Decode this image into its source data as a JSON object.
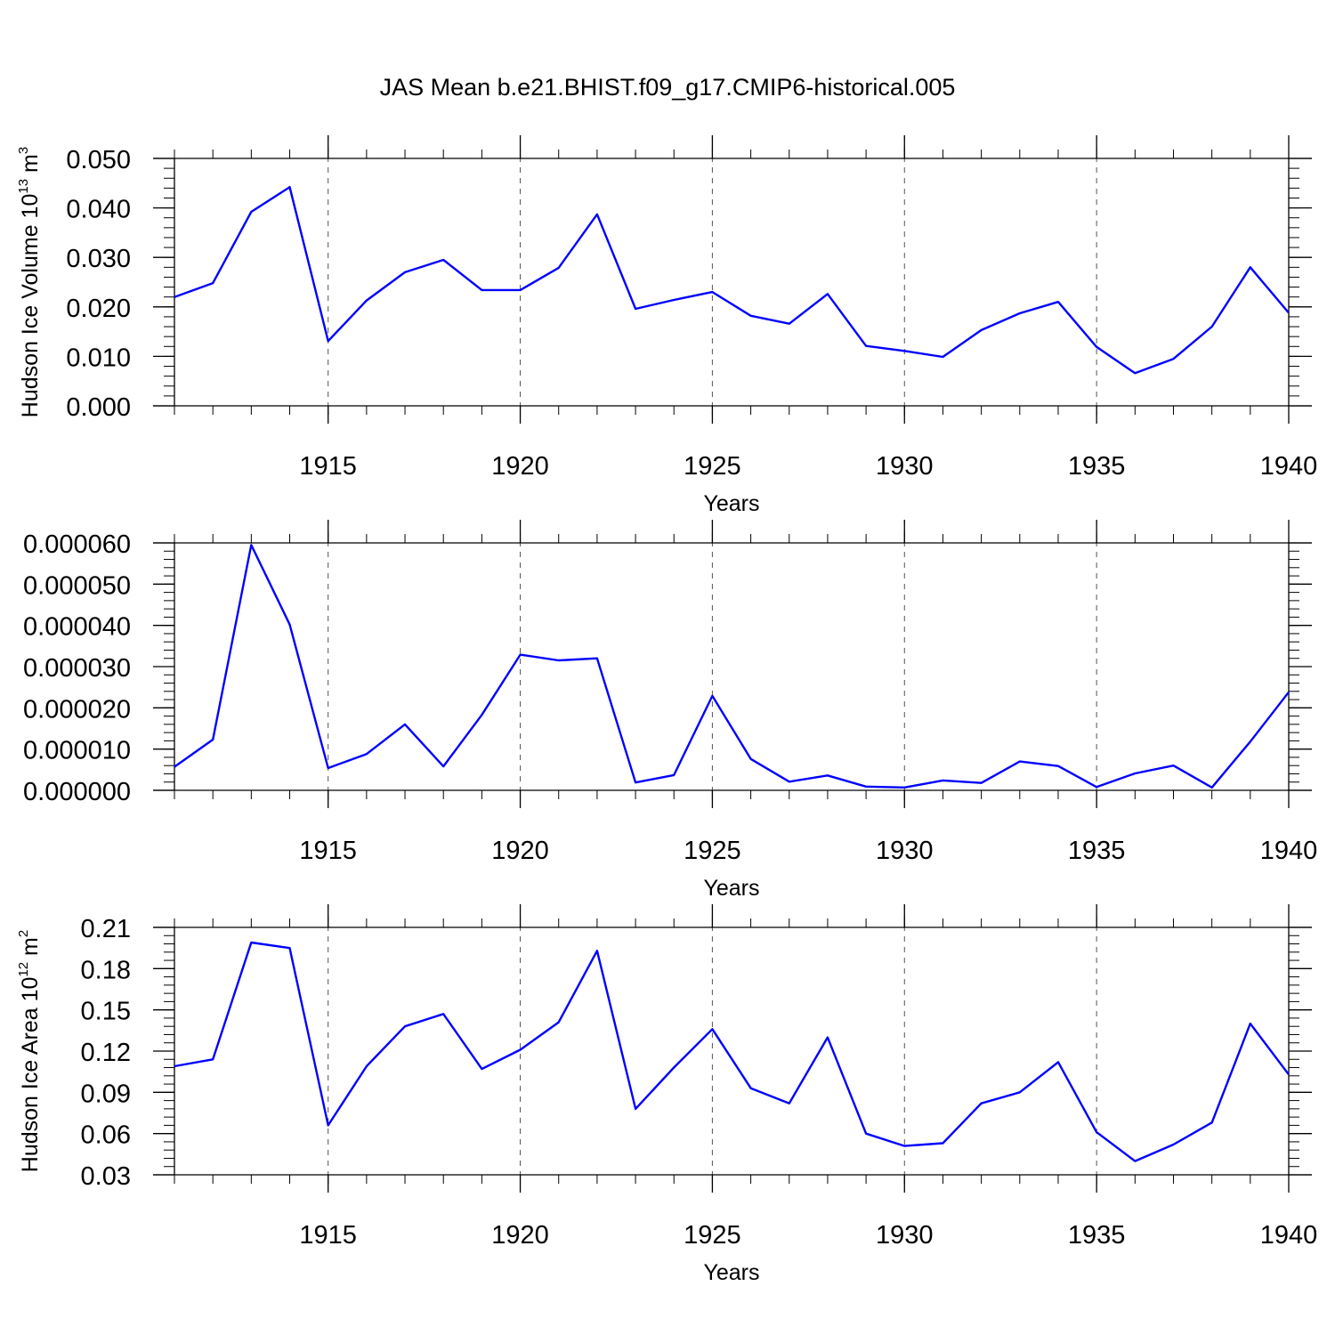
{
  "title": "JAS Mean b.e21.BHIST.f09_g17.CMIP6-historical.005",
  "colors": {
    "line": "#0000ff",
    "axis": "#000000",
    "grid": "#555555"
  },
  "chart_data": [
    {
      "type": "line",
      "xlabel": "Years",
      "ylabel": {
        "base": "Hudson Ice Volume 10",
        "exp": "13",
        "unit": " m",
        "unit_exp": "3"
      },
      "xlim": [
        1911,
        1940
      ],
      "ylim": [
        0,
        0.05
      ],
      "yticks": [
        0,
        0.01,
        0.02,
        0.03,
        0.04,
        0.05
      ],
      "ytick_labels": [
        "0.000",
        "0.010",
        "0.020",
        "0.030",
        "0.040",
        "0.050"
      ],
      "xticks": [
        1915,
        1920,
        1925,
        1930,
        1935,
        1940
      ],
      "xtick_labels": [
        "1915",
        "1920",
        "1925",
        "1930",
        "1935",
        "1940"
      ],
      "minor_y_step": 0.002,
      "grid": "vertical dashed at major x ticks",
      "x": [
        1911,
        1912,
        1913,
        1914,
        1915,
        1916,
        1917,
        1918,
        1919,
        1920,
        1921,
        1922,
        1923,
        1924,
        1925,
        1926,
        1927,
        1928,
        1929,
        1930,
        1931,
        1932,
        1933,
        1934,
        1935,
        1936,
        1937,
        1938,
        1939,
        1940
      ],
      "series": [
        {
          "values": [
            0.022,
            0.0248,
            0.0392,
            0.0442,
            0.0131,
            0.0213,
            0.027,
            0.0295,
            0.0234,
            0.0234,
            0.0279,
            0.0387,
            0.0196,
            0.0214,
            0.023,
            0.0182,
            0.0166,
            0.0226,
            0.0121,
            0.0111,
            0.0099,
            0.0153,
            0.0187,
            0.021,
            0.0119,
            0.0066,
            0.0095,
            0.016,
            0.028,
            0.0188
          ]
        }
      ]
    },
    {
      "type": "line",
      "xlabel": "Years",
      "ylabel": null,
      "xlim": [
        1911,
        1940
      ],
      "ylim": [
        0,
        6e-05
      ],
      "yticks": [
        0,
        1e-05,
        2e-05,
        3e-05,
        4e-05,
        5e-05,
        6e-05
      ],
      "ytick_labels": [
        "0.000000",
        "0.000010",
        "0.000020",
        "0.000030",
        "0.000040",
        "0.000050",
        "0.000060"
      ],
      "xticks": [
        1915,
        1920,
        1925,
        1930,
        1935,
        1940
      ],
      "xtick_labels": [
        "1915",
        "1920",
        "1925",
        "1930",
        "1935",
        "1940"
      ],
      "minor_y_step": 2e-06,
      "grid": "vertical dashed at major x ticks",
      "x": [
        1911,
        1912,
        1913,
        1914,
        1915,
        1916,
        1917,
        1918,
        1919,
        1920,
        1921,
        1922,
        1923,
        1924,
        1925,
        1926,
        1927,
        1928,
        1929,
        1930,
        1931,
        1932,
        1933,
        1934,
        1935,
        1936,
        1937,
        1938,
        1939,
        1940
      ],
      "series": [
        {
          "values": [
            5.7e-06,
            1.23e-05,
            5.95e-05,
            4.02e-05,
            5.4e-06,
            8.8e-06,
            1.6e-05,
            5.8e-06,
            1.83e-05,
            3.29e-05,
            3.15e-05,
            3.2e-05,
            1.9e-06,
            3.7e-06,
            2.29e-05,
            7.6e-06,
            2.1e-06,
            3.6e-06,
            9e-07,
            7e-07,
            2.4e-06,
            1.8e-06,
            7e-06,
            5.9e-06,
            8e-07,
            4.1e-06,
            6e-06,
            7e-07,
            1.18e-05,
            2.38e-05
          ]
        }
      ]
    },
    {
      "type": "line",
      "xlabel": "Years",
      "ylabel": {
        "base": "Hudson Ice Area 10",
        "exp": "12",
        "unit": " m",
        "unit_exp": "2"
      },
      "xlim": [
        1911,
        1940
      ],
      "ylim": [
        0.03,
        0.21
      ],
      "yticks": [
        0.03,
        0.06,
        0.09,
        0.12,
        0.15,
        0.18,
        0.21
      ],
      "ytick_labels": [
        "0.03",
        "0.06",
        "0.09",
        "0.12",
        "0.15",
        "0.18",
        "0.21"
      ],
      "xticks": [
        1915,
        1920,
        1925,
        1930,
        1935,
        1940
      ],
      "xtick_labels": [
        "1915",
        "1920",
        "1925",
        "1930",
        "1935",
        "1940"
      ],
      "minor_y_step": 0.006,
      "grid": "vertical dashed at major x ticks",
      "x": [
        1911,
        1912,
        1913,
        1914,
        1915,
        1916,
        1917,
        1918,
        1919,
        1920,
        1921,
        1922,
        1923,
        1924,
        1925,
        1926,
        1927,
        1928,
        1929,
        1930,
        1931,
        1932,
        1933,
        1934,
        1935,
        1936,
        1937,
        1938,
        1939,
        1940
      ],
      "series": [
        {
          "values": [
            0.109,
            0.114,
            0.199,
            0.195,
            0.066,
            0.109,
            0.138,
            0.147,
            0.107,
            0.121,
            0.141,
            0.193,
            0.078,
            0.108,
            0.136,
            0.093,
            0.082,
            0.13,
            0.06,
            0.051,
            0.053,
            0.082,
            0.09,
            0.112,
            0.061,
            0.04,
            0.052,
            0.068,
            0.14,
            0.103
          ]
        }
      ]
    }
  ]
}
